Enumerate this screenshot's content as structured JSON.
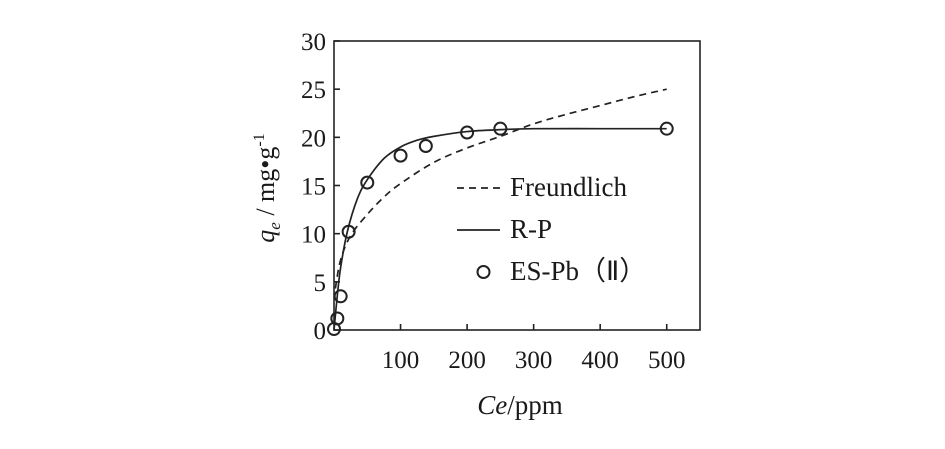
{
  "chart_data": {
    "type": "scatter",
    "title": "",
    "xlabel": {
      "var": "Ce",
      "unit": "/ppm"
    },
    "ylabel": {
      "var": "q",
      "sub": "e",
      "unit": " / mg•g",
      "sup": "-1"
    },
    "xlim": [
      0,
      550
    ],
    "ylim": [
      0,
      30
    ],
    "x_ticks": [
      100,
      200,
      300,
      400,
      500
    ],
    "y_ticks": [
      0,
      5,
      10,
      15,
      20,
      25,
      30
    ],
    "grid": false,
    "legend_position": "right-middle",
    "series": [
      {
        "name": "Freundlich",
        "style": "dashed-line",
        "x": [
          2,
          10,
          25,
          50,
          75,
          100,
          150,
          200,
          250,
          300,
          350,
          400,
          450,
          500
        ],
        "y": [
          4.3,
          7.3,
          9.8,
          12.0,
          13.8,
          15.2,
          17.4,
          18.9,
          20.1,
          21.4,
          22.4,
          23.3,
          24.2,
          25.0
        ]
      },
      {
        "name": "R-P",
        "style": "solid-line",
        "x": [
          0,
          5,
          10,
          20,
          35,
          50,
          75,
          100,
          125,
          150,
          200,
          250,
          300,
          400,
          500
        ],
        "y": [
          0,
          3.6,
          6.5,
          10.2,
          13.6,
          15.6,
          17.8,
          19.0,
          19.7,
          20.1,
          20.6,
          20.8,
          20.9,
          20.9,
          20.9
        ]
      },
      {
        "name": "ES-Pb（Ⅱ）",
        "style": "open-circle",
        "x": [
          0,
          5,
          10,
          22,
          50,
          100,
          138,
          200,
          250,
          500
        ],
        "y": [
          0.1,
          1.2,
          3.5,
          10.2,
          15.3,
          18.1,
          19.1,
          20.5,
          20.9,
          20.9
        ]
      }
    ]
  }
}
